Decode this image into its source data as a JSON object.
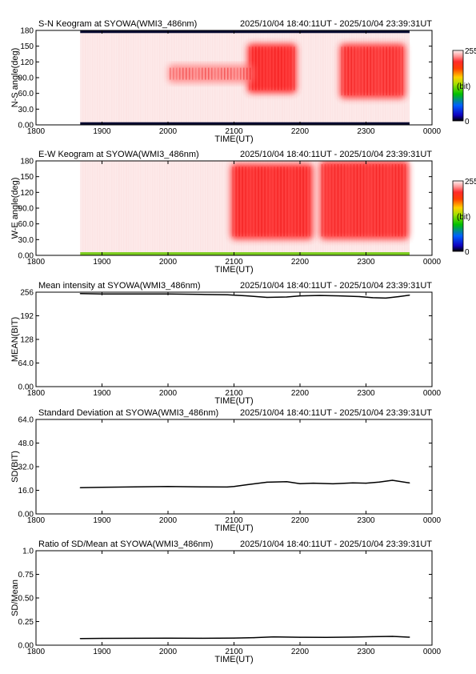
{
  "chart_data": [
    {
      "type": "heatmap",
      "title": "S-N Keogram at SYOWA(WMI3_486nm)",
      "time_range": "2025/10/04 18:40:11UT - 2025/10/04 23:39:31UT",
      "xlabel": "TIME(UT)",
      "ylabel": "N-S angle(deg)",
      "x_tick_labels": [
        "1800",
        "1900",
        "2000",
        "2100",
        "2200",
        "2300",
        "0000"
      ],
      "y_tick_labels": [
        "0.00",
        "30.0",
        "60.0",
        "90.0",
        "120",
        "150",
        "180"
      ],
      "colorbar": {
        "max_label": "255",
        "unit_label": "(bit)",
        "min_label": "0",
        "range": [
          0,
          255
        ]
      },
      "data_extent_hours": [
        18.67,
        23.66
      ],
      "bright_regions": [
        {
          "x_start": 21.2,
          "x_end": 21.95,
          "y_low": 60,
          "y_high": 155,
          "intensity": 0.9
        },
        {
          "x_start": 20.0,
          "x_end": 21.3,
          "y_low": 80,
          "y_high": 115,
          "intensity": 0.35
        },
        {
          "x_start": 22.6,
          "x_end": 23.6,
          "y_low": 50,
          "y_high": 155,
          "intensity": 0.75
        }
      ],
      "dark_bands_deg": [
        [
          0,
          5
        ],
        [
          175,
          180
        ]
      ]
    },
    {
      "type": "heatmap",
      "title": "E-W Keogram at SYOWA(WMI3_486nm)",
      "time_range": "2025/10/04 18:40:11UT - 2025/10/04 23:39:31UT",
      "xlabel": "TIME(UT)",
      "ylabel": "W-E angle(deg)",
      "x_tick_labels": [
        "1800",
        "1900",
        "2000",
        "2100",
        "2200",
        "2300",
        "0000"
      ],
      "y_tick_labels": [
        "0.00",
        "30.0",
        "60.0",
        "90.0",
        "120",
        "150",
        "180"
      ],
      "colorbar": {
        "max_label": "255",
        "unit_label": "(bit)",
        "min_label": "0",
        "range": [
          0,
          255
        ]
      },
      "data_extent_hours": [
        18.67,
        23.66
      ],
      "bright_regions": [
        {
          "x_start": 20.95,
          "x_end": 22.2,
          "y_low": 30,
          "y_high": 175,
          "intensity": 0.85
        },
        {
          "x_start": 22.3,
          "x_end": 23.65,
          "y_low": 30,
          "y_high": 180,
          "intensity": 0.8
        }
      ],
      "green_band_deg": [
        0,
        6
      ]
    },
    {
      "type": "line",
      "title": "Mean intensity at SYOWA(WMI3_486nm)",
      "time_range": "2025/10/04 18:40:11UT - 2025/10/04 23:39:31UT",
      "xlabel": "TIME(UT)",
      "ylabel": "MEAN(BIT)",
      "x_tick_labels": [
        "1800",
        "1900",
        "2000",
        "2100",
        "2200",
        "2300",
        "0000"
      ],
      "y_tick_labels": [
        "0.00",
        "64.0",
        "128",
        "192",
        "256"
      ],
      "xlim": [
        18,
        24
      ],
      "ylim": [
        0,
        256
      ],
      "x": [
        18.67,
        19.0,
        19.5,
        20.0,
        20.5,
        20.9,
        21.2,
        21.5,
        21.8,
        22.0,
        22.3,
        22.6,
        22.9,
        23.1,
        23.3,
        23.5,
        23.66
      ],
      "values": [
        252,
        251,
        251,
        251,
        250,
        249,
        246,
        242,
        243,
        246,
        247,
        246,
        244,
        241,
        240,
        244,
        248
      ]
    },
    {
      "type": "line",
      "title": "Standard Deviation at SYOWA(WMI3_486nm)",
      "time_range": "2025/10/04 18:40:11UT - 2025/10/04 23:39:31UT",
      "xlabel": "TIME(UT)",
      "ylabel": "SD(BIT)",
      "x_tick_labels": [
        "1800",
        "1900",
        "2000",
        "2100",
        "2200",
        "2300",
        "0000"
      ],
      "y_tick_labels": [
        "0.00",
        "16.0",
        "32.0",
        "48.0",
        "64.0"
      ],
      "xlim": [
        18,
        24
      ],
      "ylim": [
        0,
        64
      ],
      "x": [
        18.67,
        19.0,
        19.5,
        20.0,
        20.5,
        20.9,
        21.0,
        21.2,
        21.5,
        21.8,
        22.0,
        22.2,
        22.5,
        22.8,
        23.0,
        23.2,
        23.4,
        23.66
      ],
      "values": [
        17.8,
        18.0,
        18.3,
        18.6,
        18.3,
        18.2,
        18.6,
        19.8,
        21.5,
        21.8,
        20.5,
        20.8,
        20.4,
        21.0,
        20.8,
        21.6,
        22.8,
        21.0
      ]
    },
    {
      "type": "line",
      "title": "Ratio of SD/Mean at SYOWA(WMI3_486nm)",
      "time_range": "2025/10/04 18:40:11UT - 2025/10/04 23:39:31UT",
      "xlabel": "TIME(UT)",
      "ylabel": "SD/Mean",
      "x_tick_labels": [
        "1800",
        "1900",
        "2000",
        "2100",
        "2200",
        "2300",
        "0000"
      ],
      "y_tick_labels": [
        "0.00",
        "0.25",
        "0.50",
        "0.75",
        "1.0"
      ],
      "xlim": [
        18,
        24
      ],
      "ylim": [
        0,
        1
      ],
      "x": [
        18.67,
        19.0,
        19.5,
        20.0,
        20.5,
        21.0,
        21.3,
        21.6,
        22.0,
        22.4,
        22.8,
        23.1,
        23.4,
        23.66
      ],
      "values": [
        0.07,
        0.072,
        0.073,
        0.074,
        0.073,
        0.075,
        0.08,
        0.088,
        0.084,
        0.083,
        0.086,
        0.09,
        0.093,
        0.085
      ]
    }
  ]
}
